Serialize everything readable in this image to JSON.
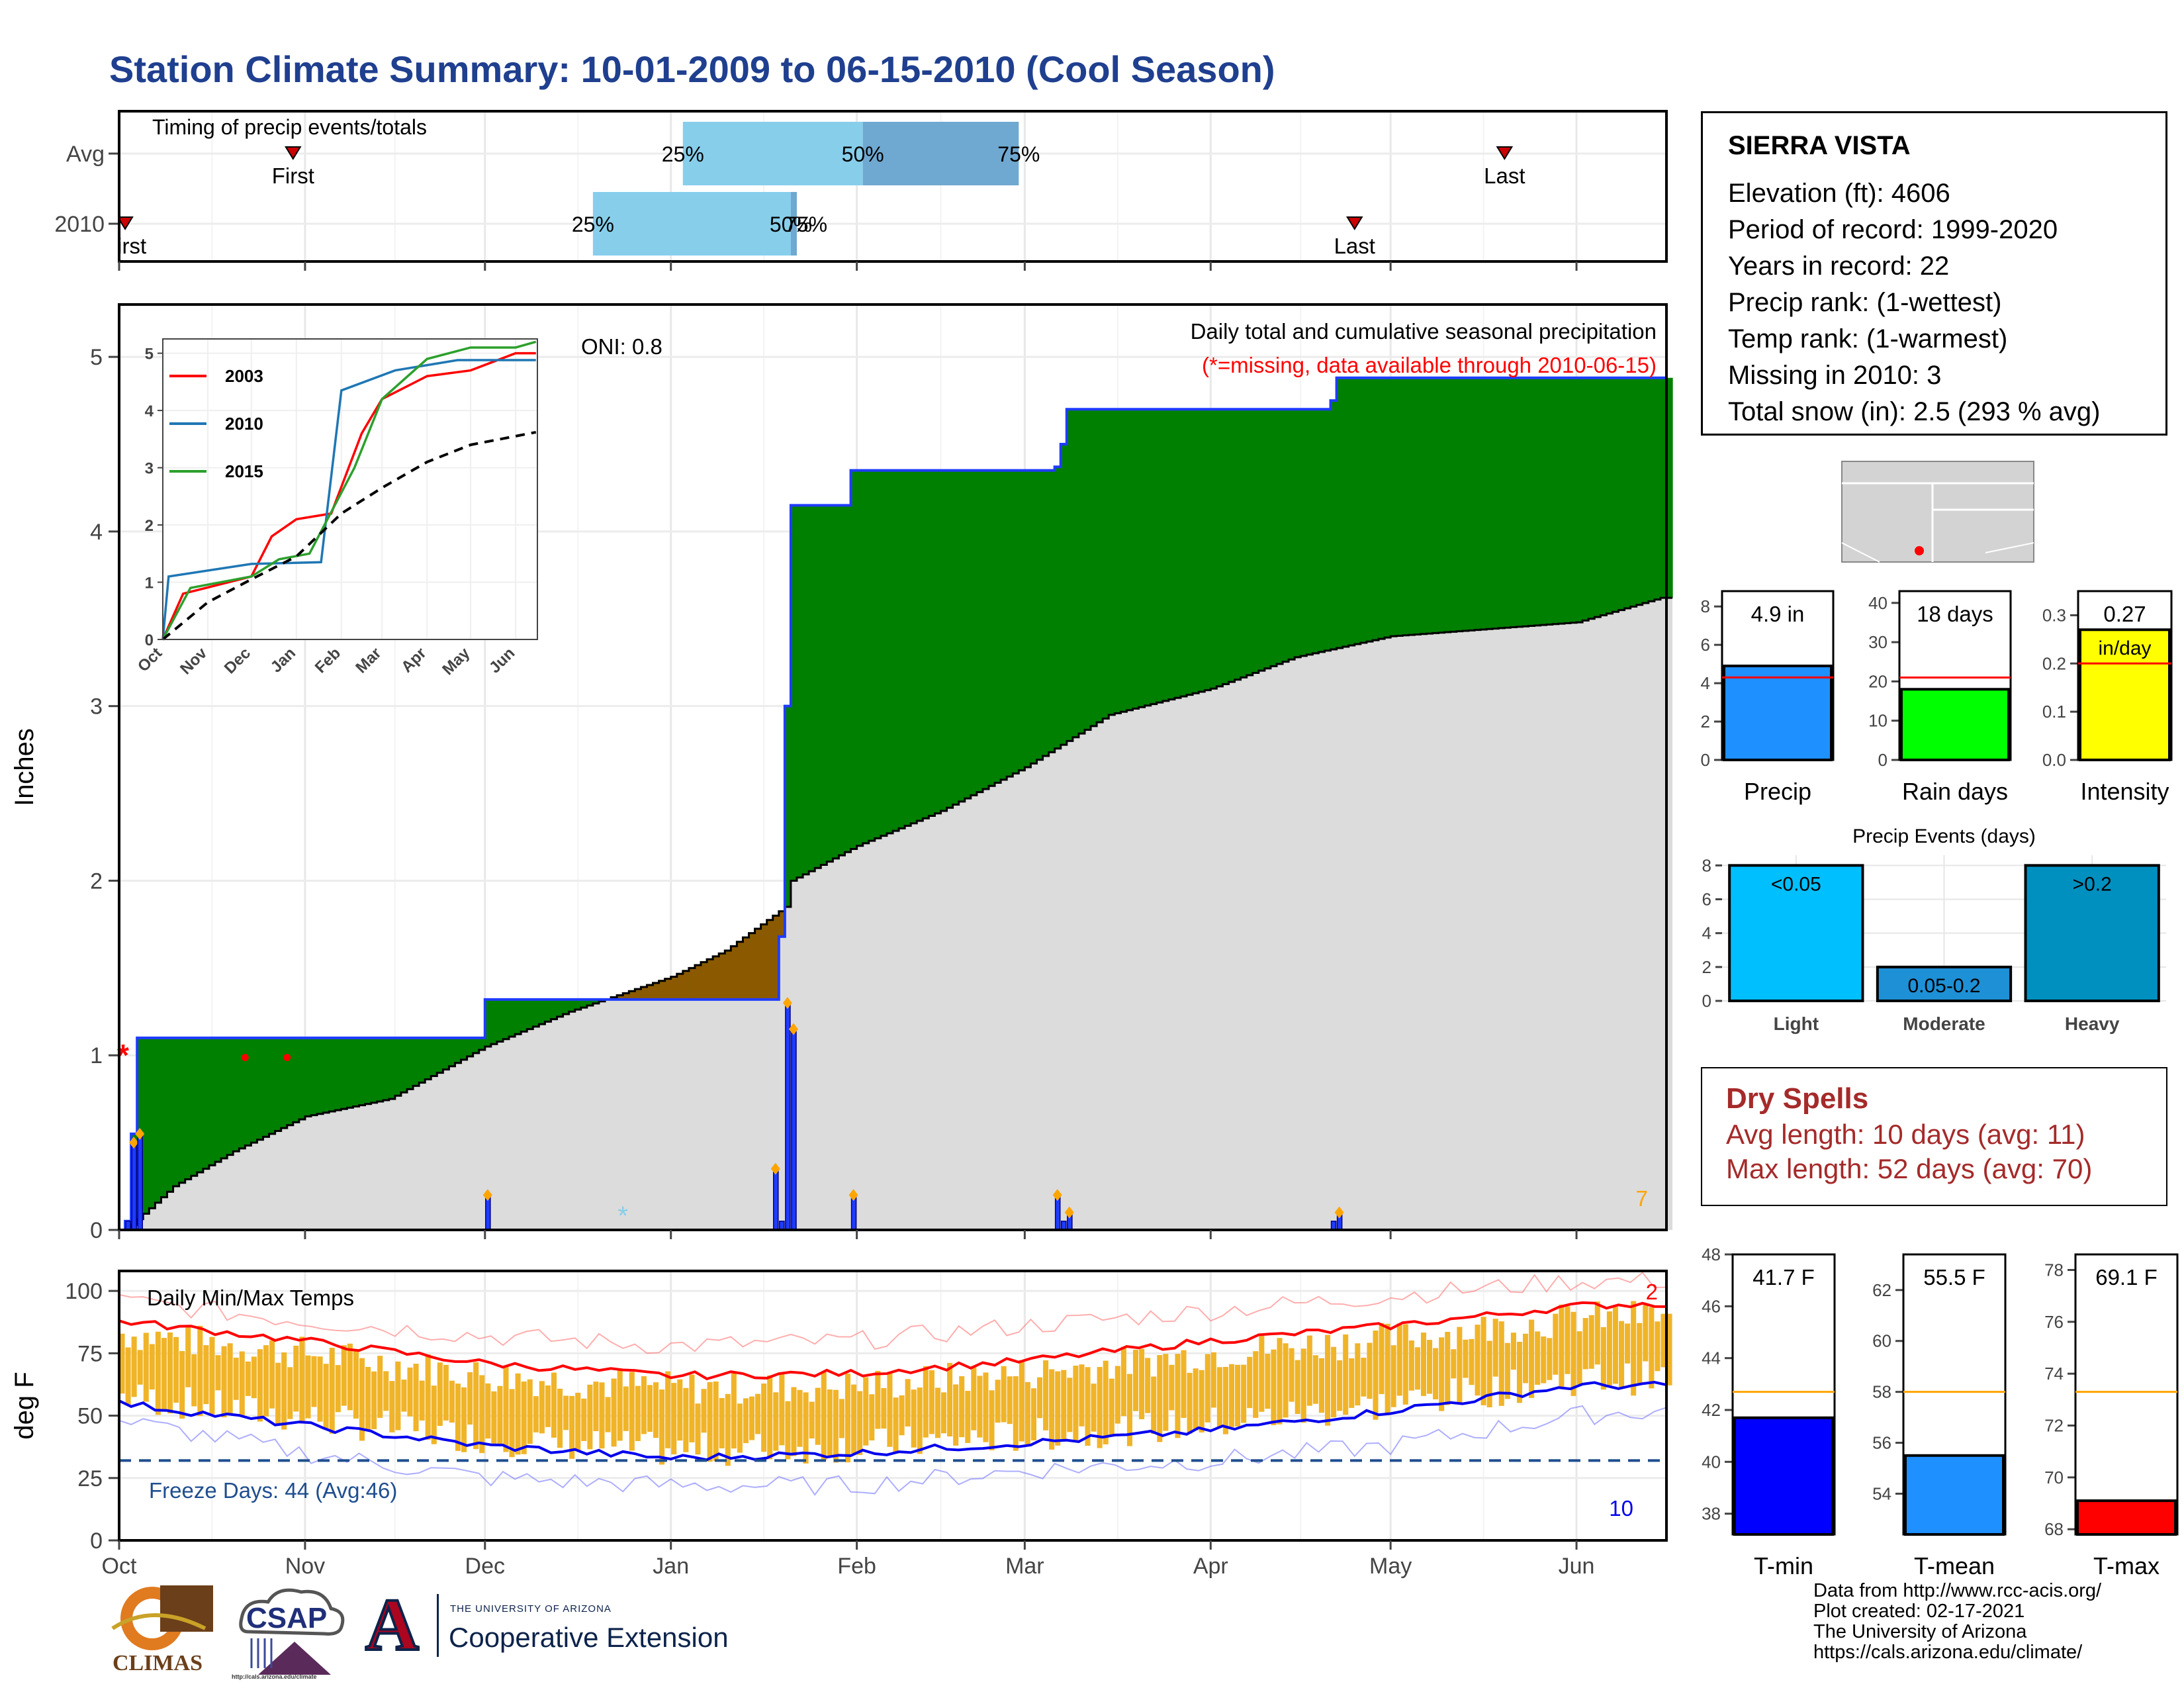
{
  "title": "Station Climate Summary: 10-01-2009 to 06-15-2010 (Cool Season)",
  "colors": {
    "title": "#1f3f8f",
    "cumulative_green": "#008000",
    "cumulative_brown": "#8b5a00",
    "normal_gray": "#dcdcdc",
    "daily_bar": "#1f3cff",
    "tmax_line": "#ff0000",
    "tmin_line": "#0000ee",
    "temp_bar": "#f0b429",
    "marker_orange": "#ffa500",
    "accent_darkred": "#a52a2a"
  },
  "station": {
    "name": "SIERRA VISTA",
    "lines": [
      "Elevation (ft): 4606",
      "Period of record: 1999-2020",
      "Years in record: 22",
      "Precip rank:  (1-wettest)",
      "Temp rank:  (1-warmest)",
      "Missing in 2010: 3",
      "Total snow (in): 2.5 (293 % avg)"
    ]
  },
  "dry_spells": {
    "title": "Dry Spells",
    "avg": "Avg length: 10 days (avg: 11)",
    "max": "Max length: 52 days (avg: 70)"
  },
  "footer": {
    "lines": [
      "Data from http://www.rcc-acis.org/",
      "Plot created: 02-17-2021",
      "The University of Arizona",
      "https://cals.arizona.edu/climate/"
    ]
  },
  "logos": {
    "climas": "CLIMAS",
    "csap": "CSAP",
    "csap_url": "http://cals.arizona.edu/climate",
    "ua_small": "THE UNIVERSITY OF ARIZONA",
    "ua_big": "Cooperative Extension",
    "ua_letter": "A"
  },
  "chart_data": [
    {
      "id": "timing",
      "type": "bar",
      "title": "Timing of precip events/totals",
      "rows": [
        "Avg",
        "2010"
      ],
      "x_ticks": [
        "Oct",
        "Nov",
        "Dec",
        "Jan",
        "Feb",
        "Mar",
        "Apr",
        "May",
        "Jun"
      ],
      "bands": [
        {
          "row": "Avg",
          "q25": "2010-01-03",
          "q50": "2010-02-02",
          "q75": "2010-02-28",
          "label25": "25%",
          "label50": "50%",
          "label75": "75%"
        },
        {
          "row": "2010",
          "q25": "2009-12-19",
          "q50": "2010-01-21",
          "q75": "2010-01-22",
          "label25": "25%",
          "label50": "50%",
          "label75": "75%"
        }
      ],
      "markers": [
        {
          "row": "Avg",
          "date": "2009-10-30",
          "label": "First"
        },
        {
          "row": "Avg",
          "date": "2010-05-20",
          "label": "Last"
        },
        {
          "row": "2010",
          "date": "2009-10-02",
          "label": "First"
        },
        {
          "row": "2010",
          "date": "2010-04-25",
          "label": "Last"
        }
      ]
    },
    {
      "id": "cumulative",
      "type": "area",
      "title": "Daily total and cumulative seasonal precipitation",
      "subtitle": "(*=missing, data available through 2010-06-15)",
      "annotation": "ONI: 0.8",
      "count_label": "7",
      "ylabel": "Inches",
      "ylim": [
        0,
        5.3
      ],
      "yticks": [
        0,
        1,
        2,
        3,
        4,
        5
      ],
      "x_ticks": [
        "Oct",
        "Nov",
        "Dec",
        "Jan",
        "Feb",
        "Mar",
        "Apr",
        "May",
        "Jun"
      ],
      "observed_cumulative": [
        [
          "2009-10-01",
          0
        ],
        [
          "2009-10-02",
          0.05
        ],
        [
          "2009-10-03",
          0.55
        ],
        [
          "2009-10-04",
          1.1
        ],
        [
          "2009-11-30",
          1.1
        ],
        [
          "2009-12-01",
          1.32
        ],
        [
          "2009-12-21",
          1.32
        ],
        [
          "2010-01-18",
          1.32
        ],
        [
          "2010-01-19",
          1.68
        ],
        [
          "2010-01-20",
          3.0
        ],
        [
          "2010-01-21",
          4.15
        ],
        [
          "2010-01-31",
          4.35
        ],
        [
          "2010-02-03",
          4.35
        ],
        [
          "2010-03-06",
          4.37
        ],
        [
          "2010-03-07",
          4.5
        ],
        [
          "2010-03-08",
          4.7
        ],
        [
          "2010-04-20",
          4.7
        ],
        [
          "2010-04-21",
          4.75
        ],
        [
          "2010-04-22",
          4.88
        ],
        [
          "2010-06-15",
          4.88
        ]
      ],
      "normal_cumulative": [
        [
          "2009-10-01",
          0
        ],
        [
          "2009-10-03",
          0.03
        ],
        [
          "2009-10-10",
          0.25
        ],
        [
          "2009-10-20",
          0.45
        ],
        [
          "2009-11-01",
          0.65
        ],
        [
          "2009-11-15",
          0.75
        ],
        [
          "2009-12-01",
          1.05
        ],
        [
          "2009-12-15",
          1.25
        ],
        [
          "2010-01-01",
          1.45
        ],
        [
          "2010-01-10",
          1.6
        ],
        [
          "2010-01-20",
          1.85
        ],
        [
          "2010-01-21",
          2.0
        ],
        [
          "2010-02-01",
          2.2
        ],
        [
          "2010-02-15",
          2.4
        ],
        [
          "2010-03-01",
          2.65
        ],
        [
          "2010-03-15",
          2.95
        ],
        [
          "2010-04-01",
          3.1
        ],
        [
          "2010-04-15",
          3.28
        ],
        [
          "2010-05-01",
          3.4
        ],
        [
          "2010-06-01",
          3.48
        ],
        [
          "2010-06-15",
          3.62
        ]
      ],
      "daily_bars": [
        [
          "2009-10-02",
          0.05
        ],
        [
          "2009-10-03",
          0.5
        ],
        [
          "2009-10-04",
          0.55
        ],
        [
          "2009-12-01",
          0.2
        ],
        [
          "2010-01-18",
          0.35
        ],
        [
          "2010-01-19",
          0.05
        ],
        [
          "2010-01-20",
          1.3
        ],
        [
          "2010-01-21",
          1.15
        ],
        [
          "2010-01-31",
          0.2
        ],
        [
          "2010-03-06",
          0.2
        ],
        [
          "2010-03-07",
          0.05
        ],
        [
          "2010-03-08",
          0.1
        ],
        [
          "2010-04-21",
          0.05
        ],
        [
          "2010-04-22",
          0.1
        ]
      ],
      "missing": [
        "2009-10-01",
        "2009-10-22",
        "2009-10-29"
      ],
      "snow": [
        "2009-12-24"
      ],
      "inset": {
        "type": "line",
        "ylim": [
          0,
          5.2
        ],
        "yticks": [
          0,
          1,
          2,
          3,
          4,
          5
        ],
        "x_ticks": [
          "Oct",
          "Nov",
          "Dec",
          "Jan",
          "Feb",
          "Mar",
          "Apr",
          "May",
          "Jun"
        ],
        "series": [
          {
            "name": "2003",
            "color": "#ff0000",
            "points": [
              [
                "2009-10-01",
                0
              ],
              [
                "2009-10-15",
                0.8
              ],
              [
                "2009-12-01",
                1.1
              ],
              [
                "2009-12-15",
                1.8
              ],
              [
                "2010-01-01",
                2.1
              ],
              [
                "2010-01-25",
                2.2
              ],
              [
                "2010-02-15",
                3.6
              ],
              [
                "2010-03-01",
                4.2
              ],
              [
                "2010-04-01",
                4.6
              ],
              [
                "2010-05-01",
                4.7
              ],
              [
                "2010-06-01",
                5.0
              ],
              [
                "2010-06-15",
                5.0
              ]
            ]
          },
          {
            "name": "2010",
            "color": "#1f77b4",
            "points": [
              [
                "2009-10-01",
                0
              ],
              [
                "2009-10-05",
                1.1
              ],
              [
                "2009-12-01",
                1.32
              ],
              [
                "2010-01-18",
                1.35
              ],
              [
                "2010-02-01",
                4.35
              ],
              [
                "2010-03-10",
                4.7
              ],
              [
                "2010-04-22",
                4.88
              ],
              [
                "2010-06-15",
                4.88
              ]
            ]
          },
          {
            "name": "2015",
            "color": "#2ca02c",
            "points": [
              [
                "2009-10-01",
                0
              ],
              [
                "2009-10-20",
                0.9
              ],
              [
                "2009-12-01",
                1.1
              ],
              [
                "2009-12-20",
                1.4
              ],
              [
                "2010-01-10",
                1.5
              ],
              [
                "2010-02-10",
                3.0
              ],
              [
                "2010-03-01",
                4.2
              ],
              [
                "2010-04-01",
                4.9
              ],
              [
                "2010-05-01",
                5.1
              ],
              [
                "2010-06-01",
                5.1
              ],
              [
                "2010-06-15",
                5.2
              ]
            ]
          },
          {
            "name": "",
            "color": "#000000",
            "dashed": true,
            "points": [
              [
                "2009-10-01",
                0
              ],
              [
                "2009-11-01",
                0.65
              ],
              [
                "2009-12-01",
                1.05
              ],
              [
                "2010-01-01",
                1.45
              ],
              [
                "2010-02-01",
                2.2
              ],
              [
                "2010-03-01",
                2.65
              ],
              [
                "2010-04-01",
                3.1
              ],
              [
                "2010-05-01",
                3.4
              ],
              [
                "2010-06-15",
                3.62
              ]
            ]
          }
        ]
      }
    },
    {
      "id": "temps",
      "type": "line",
      "title": "Daily Min/Max Temps",
      "ylabel": "deg F",
      "ylim": [
        0,
        108
      ],
      "yticks": [
        0,
        25,
        50,
        75,
        100
      ],
      "x_ticks": [
        "Oct",
        "Nov",
        "Dec",
        "Jan",
        "Feb",
        "Mar",
        "Apr",
        "May",
        "Jun"
      ],
      "freeze_label": "Freeze Days: 44 (Avg:46)",
      "freeze_threshold": 32,
      "count_max_label": "2",
      "count_min_label": "10",
      "normal_max": [
        [
          "2009-10-01",
          88
        ],
        [
          "2009-11-01",
          80
        ],
        [
          "2009-12-01",
          71
        ],
        [
          "2010-01-01",
          66
        ],
        [
          "2010-02-01",
          67
        ],
        [
          "2010-03-01",
          72
        ],
        [
          "2010-04-01",
          80
        ],
        [
          "2010-05-01",
          86
        ],
        [
          "2010-06-01",
          94
        ],
        [
          "2010-06-15",
          95
        ]
      ],
      "normal_min": [
        [
          "2009-10-01",
          55
        ],
        [
          "2009-11-01",
          46
        ],
        [
          "2009-12-01",
          38
        ],
        [
          "2010-01-01",
          33
        ],
        [
          "2010-02-01",
          35
        ],
        [
          "2010-03-01",
          39
        ],
        [
          "2010-04-01",
          44
        ],
        [
          "2010-05-01",
          52
        ],
        [
          "2010-06-01",
          62
        ],
        [
          "2010-06-15",
          62
        ]
      ],
      "record_max": [
        [
          "2009-10-01",
          96
        ],
        [
          "2009-11-01",
          88
        ],
        [
          "2009-12-01",
          82
        ],
        [
          "2010-01-01",
          78
        ],
        [
          "2010-02-01",
          80
        ],
        [
          "2010-03-01",
          86
        ],
        [
          "2010-04-01",
          92
        ],
        [
          "2010-05-01",
          98
        ],
        [
          "2010-06-01",
          104
        ],
        [
          "2010-06-15",
          104
        ]
      ],
      "record_min": [
        [
          "2009-10-01",
          48
        ],
        [
          "2009-11-01",
          35
        ],
        [
          "2009-12-01",
          25
        ],
        [
          "2010-01-01",
          22
        ],
        [
          "2010-02-01",
          22
        ],
        [
          "2010-03-01",
          28
        ],
        [
          "2010-04-01",
          32
        ],
        [
          "2010-05-01",
          38
        ],
        [
          "2010-06-01",
          50
        ],
        [
          "2010-06-15",
          52
        ]
      ]
    },
    {
      "id": "precip-bars",
      "type": "bar",
      "panels": [
        {
          "label": "Precip",
          "value": 4.9,
          "value_label": "4.9 in",
          "normal": 4.3,
          "ylim": [
            0,
            8.8
          ],
          "yticks": [
            0,
            2,
            4,
            6,
            8
          ],
          "color": "#1e90ff"
        },
        {
          "label": "Rain days",
          "value": 18,
          "value_label": "18 days",
          "normal": 21,
          "ylim": [
            0,
            43
          ],
          "yticks": [
            0,
            10,
            20,
            30,
            40
          ],
          "color": "#00ff00"
        },
        {
          "label": "Intensity",
          "value": 0.27,
          "value_label": "0.27",
          "value_label2": "in/day",
          "normal": 0.2,
          "ylim": [
            0,
            0.35
          ],
          "yticks": [
            "0.0",
            "0.1",
            "0.2",
            "0.3"
          ],
          "color": "#ffff00"
        }
      ]
    },
    {
      "id": "precip-events",
      "type": "bar",
      "title": "Precip Events (days)",
      "categories": [
        "Light",
        "Moderate",
        "Heavy"
      ],
      "values": [
        8,
        2,
        8
      ],
      "value_labels": [
        "<0.05",
        "0.05-0.2",
        ">0.2"
      ],
      "ylim": [
        0,
        8.6
      ],
      "yticks": [
        0,
        2,
        4,
        6,
        8
      ],
      "colors": [
        "#00bfff",
        "#1e90d6",
        "#0090c0"
      ]
    },
    {
      "id": "temp-bars",
      "type": "bar",
      "panels": [
        {
          "label": "T-min",
          "value": 41.7,
          "value_label": "41.7 F",
          "normal": 42.7,
          "ylim": [
            37.2,
            48
          ],
          "yticks": [
            38,
            40,
            42,
            44,
            46,
            48
          ],
          "color": "#0000ff"
        },
        {
          "label": "T-mean",
          "value": 55.5,
          "value_label": "55.5 F",
          "normal": 58.0,
          "ylim": [
            52.4,
            63.4
          ],
          "yticks": [
            54,
            56,
            58,
            60,
            62
          ],
          "color": "#1e90ff"
        },
        {
          "label": "T-max",
          "value": 69.1,
          "value_label": "69.1 F",
          "normal": 73.3,
          "ylim": [
            67.8,
            78.6
          ],
          "yticks": [
            68,
            70,
            72,
            74,
            76,
            78
          ],
          "color": "#ff0000"
        }
      ]
    }
  ]
}
